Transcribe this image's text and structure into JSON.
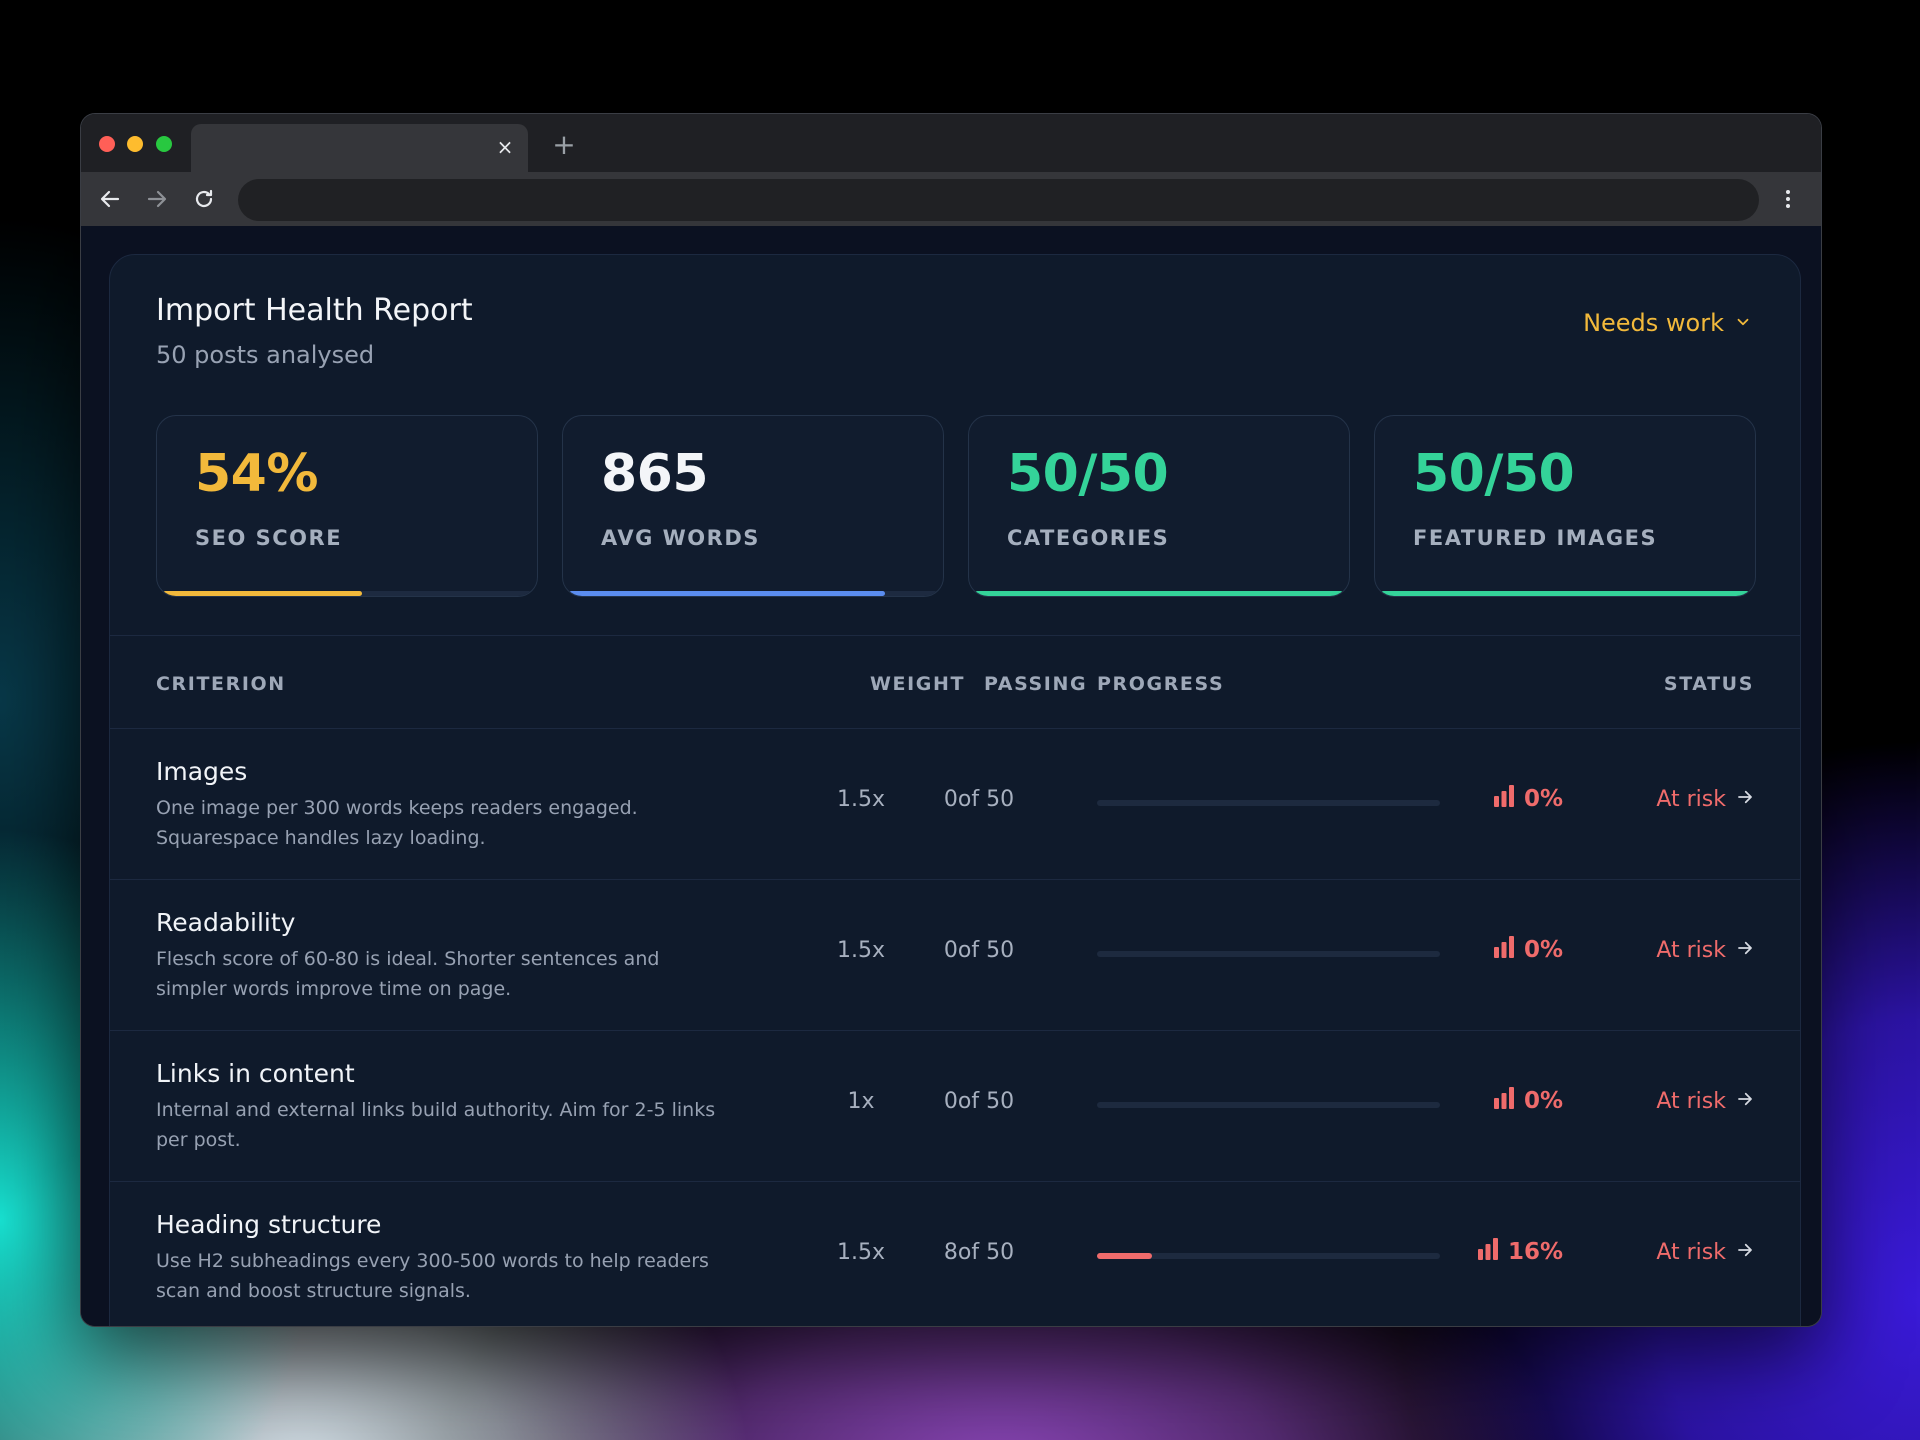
{
  "browser": {
    "close_tab_glyph": "×",
    "new_tab_glyph": "+"
  },
  "report": {
    "title": "Import Health Report",
    "subtitle": "50 posts analysed",
    "status_dropdown": "Needs work"
  },
  "metrics": [
    {
      "value": "54%",
      "label": "SEO SCORE",
      "fill_fraction": 0.54,
      "color": "#f2b93b"
    },
    {
      "value": "865",
      "label": "AVG WORDS",
      "fill_fraction": 0.86,
      "color": "#5b8def"
    },
    {
      "value": "50/50",
      "label": "CATEGORIES",
      "fill_fraction": 1.0,
      "color": "#34d399"
    },
    {
      "value": "50/50",
      "label": "FEATURED IMAGES",
      "fill_fraction": 1.0,
      "color": "#34d399"
    }
  ],
  "table": {
    "headers": {
      "criterion": "CRITERION",
      "weight": "WEIGHT",
      "passing": "PASSING",
      "progress": "PROGRESS",
      "status": "STATUS"
    },
    "rows": [
      {
        "title": "Images",
        "description": "One image per 300 words keeps readers engaged. Squarespace handles lazy loading.",
        "weight": "1.5x",
        "passing": "0of 50",
        "progress_fraction": 0.0,
        "percent": "0%",
        "status": "At risk"
      },
      {
        "title": "Readability",
        "description": "Flesch score of 60-80 is ideal. Shorter sentences and simpler words improve time on page.",
        "weight": "1.5x",
        "passing": "0of 50",
        "progress_fraction": 0.0,
        "percent": "0%",
        "status": "At risk"
      },
      {
        "title": "Links in content",
        "description": "Internal and external links build authority. Aim for 2-5 links per post.",
        "weight": "1x",
        "passing": "0of 50",
        "progress_fraction": 0.0,
        "percent": "0%",
        "status": "At risk"
      },
      {
        "title": "Heading structure",
        "description": "Use H2 subheadings every 300-500 words to help readers scan and boost structure signals.",
        "weight": "1.5x",
        "passing": "8of 50",
        "progress_fraction": 0.16,
        "percent": "16%",
        "status": "At risk"
      }
    ]
  },
  "colors": {
    "accent_warning": "#f2b93b",
    "accent_danger": "#ef6b6b",
    "accent_success": "#34d399",
    "accent_info": "#5b8def"
  }
}
